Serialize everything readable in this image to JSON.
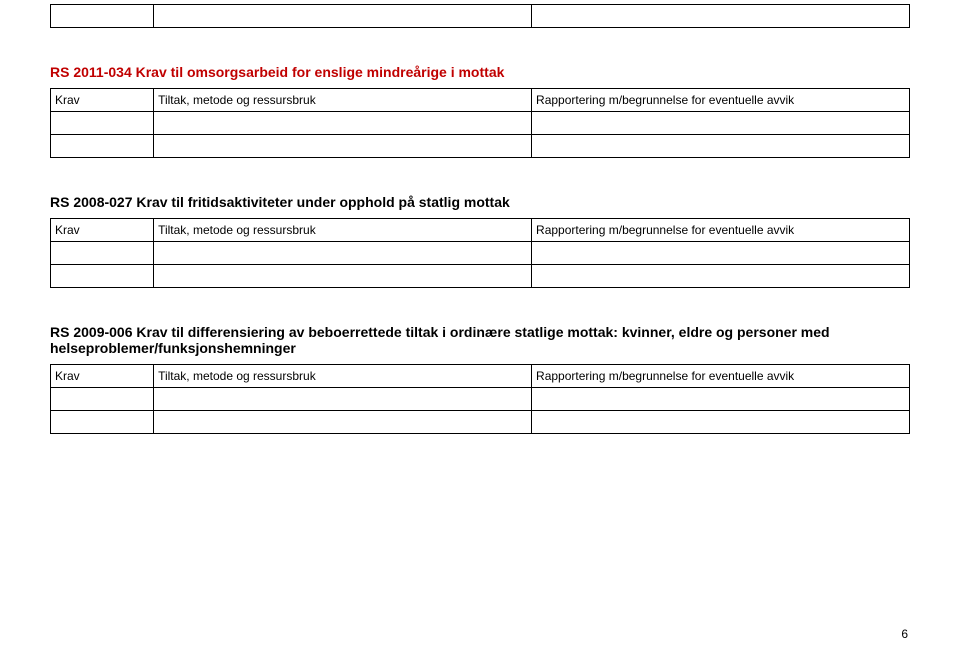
{
  "page_number": "6",
  "colors": {
    "text": "#000000",
    "heading_red": "#c00000",
    "border": "#000000",
    "background": "#ffffff"
  },
  "font": {
    "family": "Arial",
    "heading_size_pt": 11,
    "body_size_pt": 9,
    "heading_weight": "bold"
  },
  "columns": {
    "krav": "Krav",
    "tiltak": "Tiltak, metode og ressursbruk",
    "rapport": "Rapportering m/begrunnelse for eventuelle avvik"
  },
  "section_top": {
    "empty_rows": 1
  },
  "section_a": {
    "title": "RS 2011-034 Krav til omsorgsarbeid for enslige mindreårige i mottak",
    "title_color": "#c00000",
    "empty_rows": 2
  },
  "section_b": {
    "title": "RS 2008-027 Krav til fritidsaktiviteter under opphold på statlig mottak",
    "title_color": "#000000",
    "empty_rows": 2
  },
  "section_c": {
    "title": "RS 2009-006 Krav til differensiering av beboerrettede tiltak i ordinære statlige mottak: kvinner, eldre og personer med helseproblemer/funksjonshemninger",
    "title_color": "#000000",
    "empty_rows": 2
  }
}
